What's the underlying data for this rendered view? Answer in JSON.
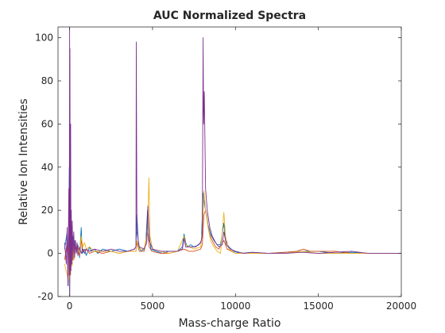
{
  "chart_data": {
    "type": "line",
    "title": "AUC Normalized Spectra",
    "xlabel": "Mass-charge Ratio",
    "ylabel": "Relative Ion Intensities",
    "xlim": [
      -700,
      20000
    ],
    "ylim": [
      -20,
      105
    ],
    "xticks": [
      0,
      5000,
      10000,
      15000,
      20000
    ],
    "xtick_labels": [
      "0",
      "5000",
      "10000",
      "15000",
      "20000"
    ],
    "yticks": [
      -20,
      0,
      20,
      40,
      60,
      80,
      100
    ],
    "ytick_labels": [
      "-20",
      "0",
      "20",
      "40",
      "60",
      "80",
      "100"
    ],
    "grid": false,
    "series": [
      {
        "color": "#0072BD",
        "points": [
          [
            -300,
            2
          ],
          [
            -150,
            10
          ],
          [
            -80,
            -15
          ],
          [
            -20,
            40
          ],
          [
            0,
            -18
          ],
          [
            30,
            15
          ],
          [
            60,
            -8
          ],
          [
            100,
            10
          ],
          [
            150,
            -5
          ],
          [
            200,
            8
          ],
          [
            260,
            -3
          ],
          [
            320,
            6
          ],
          [
            400,
            0
          ],
          [
            500,
            4
          ],
          [
            600,
            -2
          ],
          [
            700,
            12
          ],
          [
            760,
            0
          ],
          [
            900,
            2
          ],
          [
            1000,
            -1
          ],
          [
            1200,
            3
          ],
          [
            1300,
            1
          ],
          [
            1500,
            2
          ],
          [
            1700,
            0
          ],
          [
            2000,
            2
          ],
          [
            2500,
            1
          ],
          [
            3000,
            2
          ],
          [
            3500,
            1
          ],
          [
            3900,
            2
          ],
          [
            4000,
            3
          ],
          [
            4060,
            18
          ],
          [
            4150,
            4
          ],
          [
            4300,
            1
          ],
          [
            4500,
            2
          ],
          [
            4600,
            6
          ],
          [
            4700,
            20
          ],
          [
            4800,
            8
          ],
          [
            4900,
            2
          ],
          [
            5200,
            1
          ],
          [
            5600,
            0
          ],
          [
            6000,
            1
          ],
          [
            6500,
            1
          ],
          [
            6800,
            3
          ],
          [
            6900,
            9
          ],
          [
            7000,
            5
          ],
          [
            7100,
            3
          ],
          [
            7300,
            4
          ],
          [
            7500,
            3
          ],
          [
            7800,
            4
          ],
          [
            7950,
            6
          ],
          [
            8050,
            28
          ],
          [
            8150,
            22
          ],
          [
            8250,
            18
          ],
          [
            8350,
            13
          ],
          [
            8500,
            9
          ],
          [
            8700,
            6
          ],
          [
            8900,
            4
          ],
          [
            9100,
            4
          ],
          [
            9300,
            14
          ],
          [
            9400,
            6
          ],
          [
            9600,
            3
          ],
          [
            9900,
            1
          ],
          [
            10300,
            0
          ],
          [
            11000,
            0.5
          ],
          [
            12000,
            0
          ],
          [
            13000,
            0.5
          ],
          [
            14000,
            1
          ],
          [
            15000,
            1
          ],
          [
            16000,
            0
          ],
          [
            17000,
            0.5
          ],
          [
            18000,
            0
          ],
          [
            19000,
            0
          ],
          [
            20000,
            0
          ]
        ]
      },
      {
        "color": "#D95319",
        "points": [
          [
            -300,
            -3
          ],
          [
            -150,
            5
          ],
          [
            -80,
            -10
          ],
          [
            -20,
            30
          ],
          [
            0,
            -12
          ],
          [
            30,
            10
          ],
          [
            60,
            -6
          ],
          [
            100,
            8
          ],
          [
            150,
            -4
          ],
          [
            200,
            6
          ],
          [
            260,
            -2
          ],
          [
            320,
            4
          ],
          [
            400,
            1
          ],
          [
            500,
            3
          ],
          [
            600,
            -1
          ],
          [
            700,
            6
          ],
          [
            800,
            1
          ],
          [
            1000,
            2
          ],
          [
            1200,
            0
          ],
          [
            1500,
            1
          ],
          [
            2000,
            0
          ],
          [
            2500,
            1
          ],
          [
            3000,
            0
          ],
          [
            3500,
            1
          ],
          [
            4000,
            1
          ],
          [
            4050,
            5
          ],
          [
            4200,
            1
          ],
          [
            4500,
            1
          ],
          [
            4700,
            10
          ],
          [
            4800,
            3
          ],
          [
            4950,
            1
          ],
          [
            5500,
            0
          ],
          [
            6000,
            0
          ],
          [
            6500,
            1
          ],
          [
            6900,
            2
          ],
          [
            7200,
            1
          ],
          [
            7500,
            1
          ],
          [
            7900,
            2
          ],
          [
            8000,
            4
          ],
          [
            8100,
            18
          ],
          [
            8200,
            20
          ],
          [
            8300,
            15
          ],
          [
            8400,
            10
          ],
          [
            8600,
            6
          ],
          [
            8800,
            3
          ],
          [
            9000,
            2
          ],
          [
            9300,
            6
          ],
          [
            9500,
            2
          ],
          [
            10000,
            0
          ],
          [
            11000,
            0
          ],
          [
            12000,
            0
          ],
          [
            13000,
            0.5
          ],
          [
            13700,
            1
          ],
          [
            14100,
            2
          ],
          [
            14500,
            1
          ],
          [
            15000,
            1
          ],
          [
            16000,
            1
          ],
          [
            17000,
            0
          ],
          [
            18000,
            0
          ],
          [
            19000,
            0
          ],
          [
            20000,
            0
          ]
        ]
      },
      {
        "color": "#EDB120",
        "points": [
          [
            -300,
            -5
          ],
          [
            -150,
            -10
          ],
          [
            -80,
            -12
          ],
          [
            -20,
            20
          ],
          [
            0,
            -15
          ],
          [
            30,
            8
          ],
          [
            60,
            -10
          ],
          [
            100,
            6
          ],
          [
            150,
            -6
          ],
          [
            200,
            4
          ],
          [
            260,
            -3
          ],
          [
            320,
            3
          ],
          [
            400,
            1
          ],
          [
            500,
            2
          ],
          [
            600,
            0
          ],
          [
            700,
            8
          ],
          [
            800,
            3
          ],
          [
            900,
            5
          ],
          [
            1000,
            2
          ],
          [
            1200,
            3
          ],
          [
            1500,
            1
          ],
          [
            2000,
            1
          ],
          [
            2500,
            1
          ],
          [
            3000,
            0
          ],
          [
            3500,
            1
          ],
          [
            4000,
            1
          ],
          [
            4050,
            6
          ],
          [
            4200,
            2
          ],
          [
            4500,
            2
          ],
          [
            4700,
            10
          ],
          [
            4780,
            35
          ],
          [
            4850,
            8
          ],
          [
            5000,
            2
          ],
          [
            5500,
            1
          ],
          [
            6000,
            0
          ],
          [
            6500,
            1
          ],
          [
            6900,
            8
          ],
          [
            7000,
            4
          ],
          [
            7500,
            2
          ],
          [
            7900,
            3
          ],
          [
            8000,
            10
          ],
          [
            8100,
            29
          ],
          [
            8200,
            20
          ],
          [
            8350,
            12
          ],
          [
            8500,
            6
          ],
          [
            8700,
            3
          ],
          [
            8900,
            1
          ],
          [
            9100,
            0
          ],
          [
            9300,
            19
          ],
          [
            9400,
            8
          ],
          [
            9600,
            2
          ],
          [
            10000,
            0
          ],
          [
            11000,
            0
          ],
          [
            12000,
            0
          ],
          [
            13000,
            0
          ],
          [
            14000,
            1
          ],
          [
            15000,
            0
          ],
          [
            16000,
            0
          ],
          [
            17000,
            0
          ],
          [
            18000,
            0
          ],
          [
            19000,
            0
          ],
          [
            20000,
            0
          ]
        ]
      },
      {
        "color": "#7E2F8E",
        "points": [
          [
            -300,
            5
          ],
          [
            -200,
            -5
          ],
          [
            -150,
            12
          ],
          [
            -100,
            -15
          ],
          [
            -50,
            30
          ],
          [
            -20,
            -10
          ],
          [
            0,
            105
          ],
          [
            10,
            -20
          ],
          [
            20,
            95
          ],
          [
            40,
            -10
          ],
          [
            60,
            60
          ],
          [
            80,
            -8
          ],
          [
            100,
            20
          ],
          [
            130,
            -5
          ],
          [
            160,
            15
          ],
          [
            200,
            -3
          ],
          [
            250,
            10
          ],
          [
            300,
            -2
          ],
          [
            350,
            6
          ],
          [
            400,
            0
          ],
          [
            450,
            5
          ],
          [
            500,
            -1
          ],
          [
            600,
            3
          ],
          [
            700,
            0
          ],
          [
            800,
            2
          ],
          [
            900,
            0
          ],
          [
            1000,
            2
          ],
          [
            1200,
            1
          ],
          [
            1500,
            2
          ],
          [
            2000,
            1
          ],
          [
            2500,
            2
          ],
          [
            3000,
            1
          ],
          [
            3500,
            1
          ],
          [
            3900,
            2
          ],
          [
            4000,
            3
          ],
          [
            4020,
            98
          ],
          [
            4060,
            10
          ],
          [
            4200,
            3
          ],
          [
            4500,
            2
          ],
          [
            4650,
            5
          ],
          [
            4720,
            22
          ],
          [
            4800,
            6
          ],
          [
            5000,
            2
          ],
          [
            5500,
            1
          ],
          [
            6000,
            1
          ],
          [
            6500,
            1
          ],
          [
            6800,
            2
          ],
          [
            6900,
            7
          ],
          [
            7000,
            3
          ],
          [
            7300,
            3
          ],
          [
            7600,
            3
          ],
          [
            7900,
            5
          ],
          [
            8000,
            8
          ],
          [
            8050,
            100
          ],
          [
            8080,
            60
          ],
          [
            8120,
            75
          ],
          [
            8200,
            30
          ],
          [
            8300,
            20
          ],
          [
            8450,
            12
          ],
          [
            8600,
            8
          ],
          [
            8800,
            5
          ],
          [
            9000,
            3
          ],
          [
            9200,
            4
          ],
          [
            9300,
            10
          ],
          [
            9450,
            4
          ],
          [
            9700,
            2
          ],
          [
            10000,
            1
          ],
          [
            10500,
            0
          ],
          [
            11000,
            0.5
          ],
          [
            12000,
            0
          ],
          [
            13000,
            0
          ],
          [
            14000,
            0.5
          ],
          [
            15000,
            0
          ],
          [
            16000,
            0.5
          ],
          [
            17000,
            1
          ],
          [
            18000,
            0
          ],
          [
            19000,
            0
          ],
          [
            20000,
            0
          ]
        ]
      }
    ]
  }
}
